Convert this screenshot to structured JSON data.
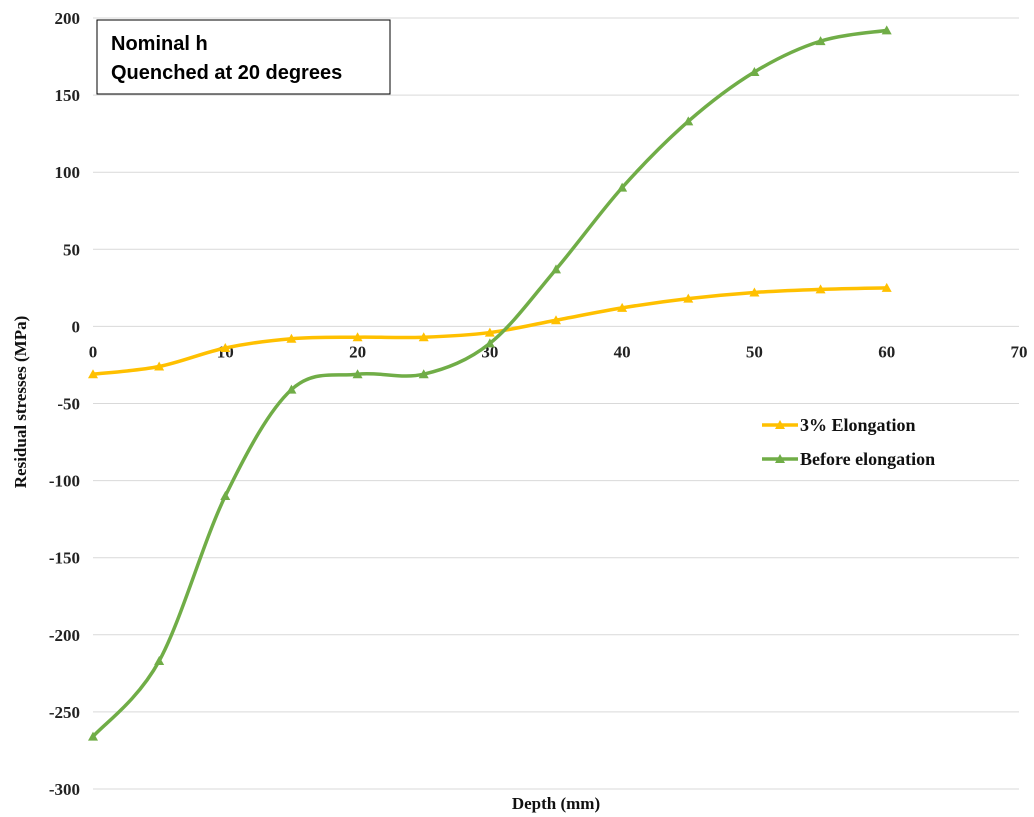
{
  "chart_data": {
    "type": "line",
    "xlabel": "Depth (mm)",
    "ylabel": "Residual stresses (MPa)",
    "xlim": [
      0,
      70
    ],
    "ylim": [
      -300,
      200
    ],
    "x_ticks": [
      "0",
      "10",
      "20",
      "30",
      "40",
      "50",
      "60",
      "70"
    ],
    "y_ticks": [
      "200",
      "150",
      "100",
      "50",
      "0",
      "-50",
      "-100",
      "-150",
      "-200",
      "-250",
      "-300"
    ],
    "grid": "horizontal",
    "legend_position": "right-middle",
    "annotation_lines": [
      "Nominal h",
      "Quenched at 20 degrees"
    ],
    "series": [
      {
        "name": "3% Elongation",
        "color": "#FFC000",
        "marker": "triangle",
        "x": [
          0,
          5,
          10,
          15,
          20,
          25,
          30,
          35,
          40,
          45,
          50,
          55,
          60
        ],
        "y": [
          -31,
          -26,
          -14,
          -8,
          -7,
          -7,
          -4,
          4,
          12,
          18,
          22,
          24,
          25
        ]
      },
      {
        "name": "Before elongation",
        "color": "#70AD47",
        "marker": "triangle",
        "x": [
          0,
          5,
          10,
          15,
          20,
          25,
          30,
          35,
          40,
          45,
          50,
          55,
          60
        ],
        "y": [
          -266,
          -217,
          -110,
          -41,
          -31,
          -31,
          -11,
          37,
          90,
          133,
          165,
          185,
          192
        ]
      }
    ]
  }
}
